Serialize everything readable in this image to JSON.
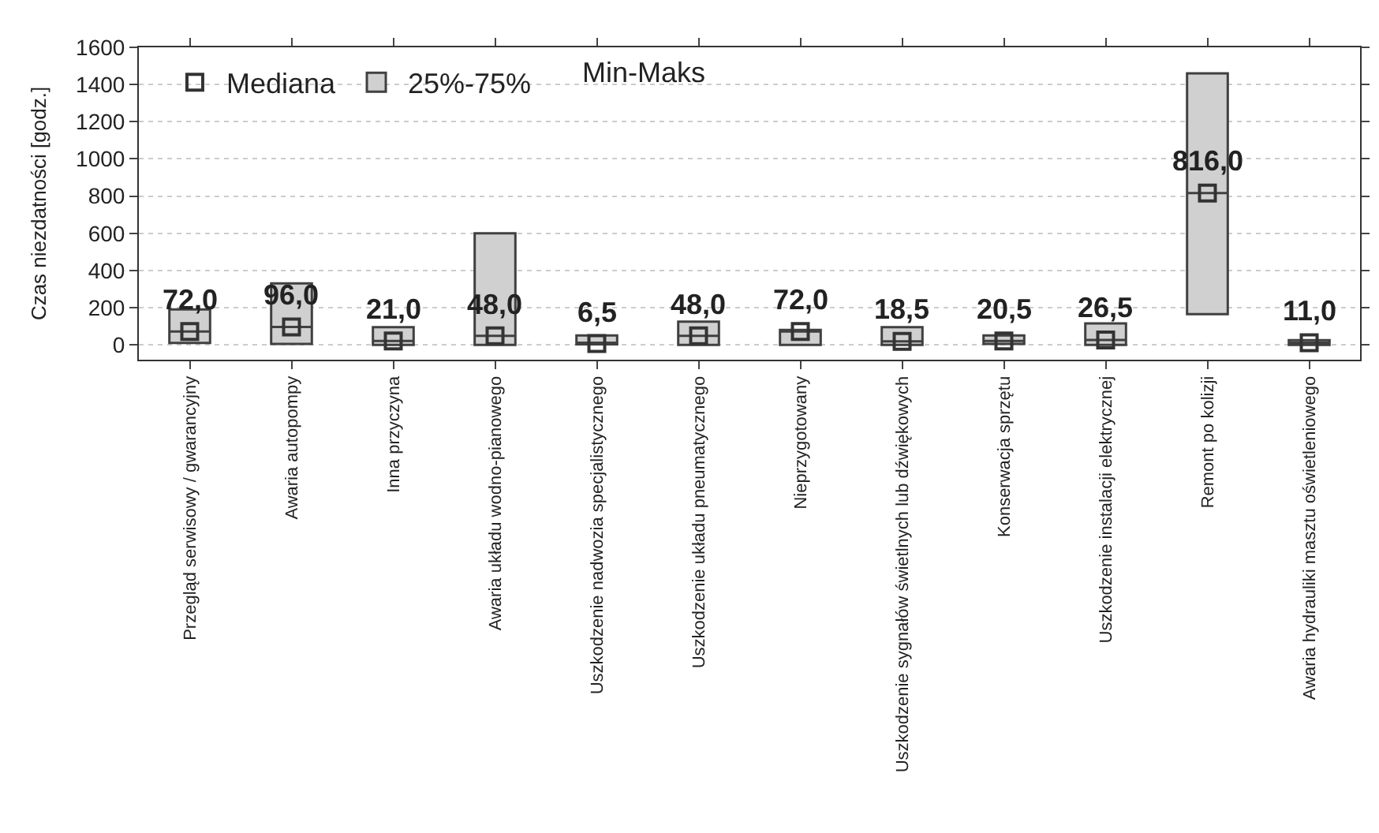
{
  "chart_data": {
    "type": "box",
    "ylabel": "Czas niezdatności [godz.]",
    "categories": [
      "Przegląd serwisowy / gwarancyjny",
      "Awaria autopompy",
      "Inna przyczyna",
      "Awaria układu wodno-pianowego",
      "Uszkodzenie nadwozia specjalistycznego",
      "Uszkodzenie układu pneumatycznego",
      "Nieprzygotowany",
      "Uszkodzenie sygnałów świetlnych lub dźwiękowych",
      "Konserwacja sprzętu",
      "Uszkodzenie instalacji elektrycznej",
      "Remont po kolizji",
      "Awaria hydrauliki masztu oświetleniowego"
    ],
    "series": [
      {
        "name": "Mediana",
        "type": "scatter",
        "color": "#333333",
        "values": [
          72.0,
          96.0,
          21.0,
          48.0,
          6.5,
          48.0,
          72.0,
          18.5,
          20.5,
          26.5,
          816.0,
          11.0
        ],
        "value_labels": [
          "72,0",
          "96,0",
          "21,0",
          "48,0",
          "6,5",
          "48,0",
          "72,0",
          "18,5",
          "20,5",
          "26,5",
          "816,0",
          "11,0"
        ]
      },
      {
        "name": "25%-75%",
        "color": "#404040",
        "boxes": [
          {
            "low": 10,
            "q1": 10,
            "median": 72.0,
            "q3": 190,
            "high": 190
          },
          {
            "low": 5,
            "q1": 5,
            "median": 96.0,
            "q3": 330,
            "high": 330
          },
          {
            "low": 0,
            "q1": 0,
            "median": 21.0,
            "q3": 95,
            "high": 95
          },
          {
            "low": 0,
            "q1": 0,
            "median": 48.0,
            "q3": 600,
            "high": 600
          },
          {
            "low": 3,
            "q1": 3,
            "median": 6.5,
            "q3": 50,
            "high": 50
          },
          {
            "low": 0,
            "q1": 0,
            "median": 48.0,
            "q3": 125,
            "high": 125
          },
          {
            "low": 0,
            "q1": 0,
            "median": 72.0,
            "q3": 80,
            "high": 80
          },
          {
            "low": 0,
            "q1": 0,
            "median": 18.5,
            "q3": 95,
            "high": 95
          },
          {
            "low": 5,
            "q1": 5,
            "median": 20.5,
            "q3": 50,
            "high": 50
          },
          {
            "low": 0,
            "q1": 0,
            "median": 26.5,
            "q3": 115,
            "high": 115
          },
          {
            "low": 165,
            "q1": 165,
            "median": 816.0,
            "q3": 1460,
            "high": 1460
          },
          {
            "low": 0,
            "q1": 0,
            "median": 11.0,
            "q3": 25,
            "high": 25
          }
        ]
      }
    ],
    "annotations": [
      "Min-Maks"
    ],
    "ylim": [
      -80,
      1600
    ],
    "yticks": [
      0,
      200,
      400,
      600,
      800,
      1000,
      1200,
      1400,
      1600
    ],
    "grid": "y",
    "legend": "top left",
    "marker": "square"
  }
}
